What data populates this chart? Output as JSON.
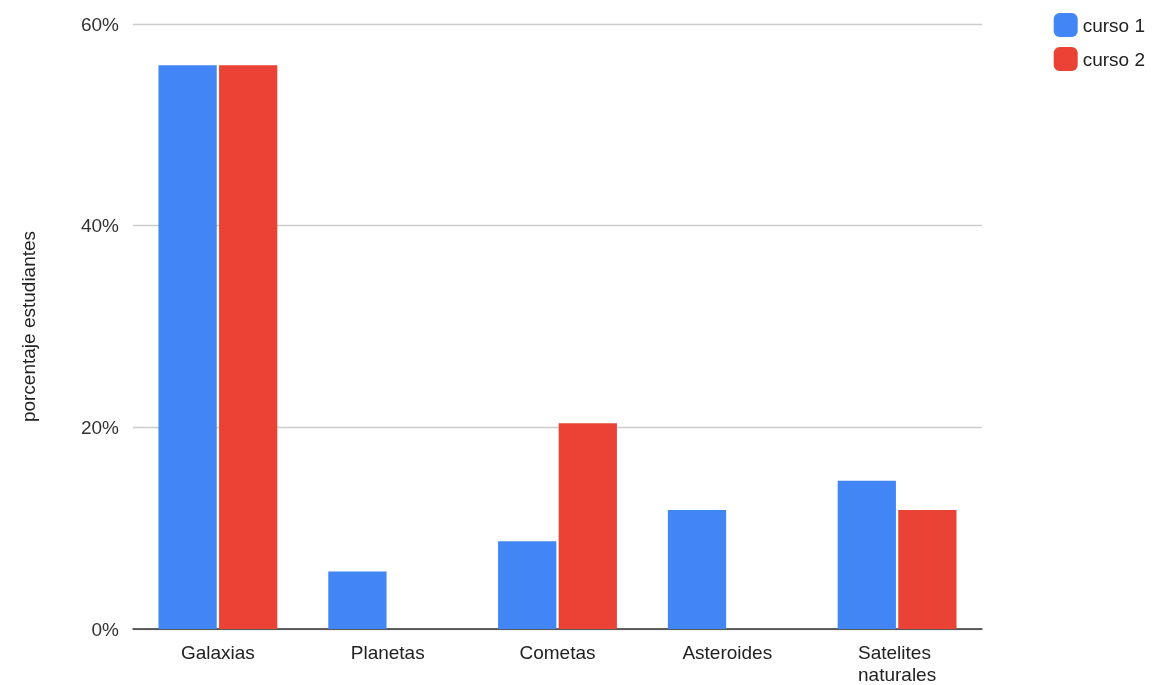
{
  "chart_data": {
    "type": "bar",
    "ylabel": "porcentaje estudiantes",
    "categories": [
      "Galaxias",
      "Planetas",
      "Cometas",
      "Asteroides",
      "Satelites naturales"
    ],
    "series": [
      {
        "name": "curso 1",
        "color": "#4285f4",
        "values": [
          55.9,
          5.7,
          8.7,
          11.8,
          14.7
        ]
      },
      {
        "name": "curso 2",
        "color": "#ea4335",
        "values": [
          55.9,
          0,
          20.4,
          0,
          11.8
        ]
      }
    ],
    "ylim": [
      0,
      60
    ],
    "yticks": [
      {
        "value": 0,
        "label": "0%"
      },
      {
        "value": 20,
        "label": "20%"
      },
      {
        "value": 40,
        "label": "40%"
      },
      {
        "value": 60,
        "label": "60%"
      }
    ],
    "grid": "y",
    "legend": "top right"
  }
}
